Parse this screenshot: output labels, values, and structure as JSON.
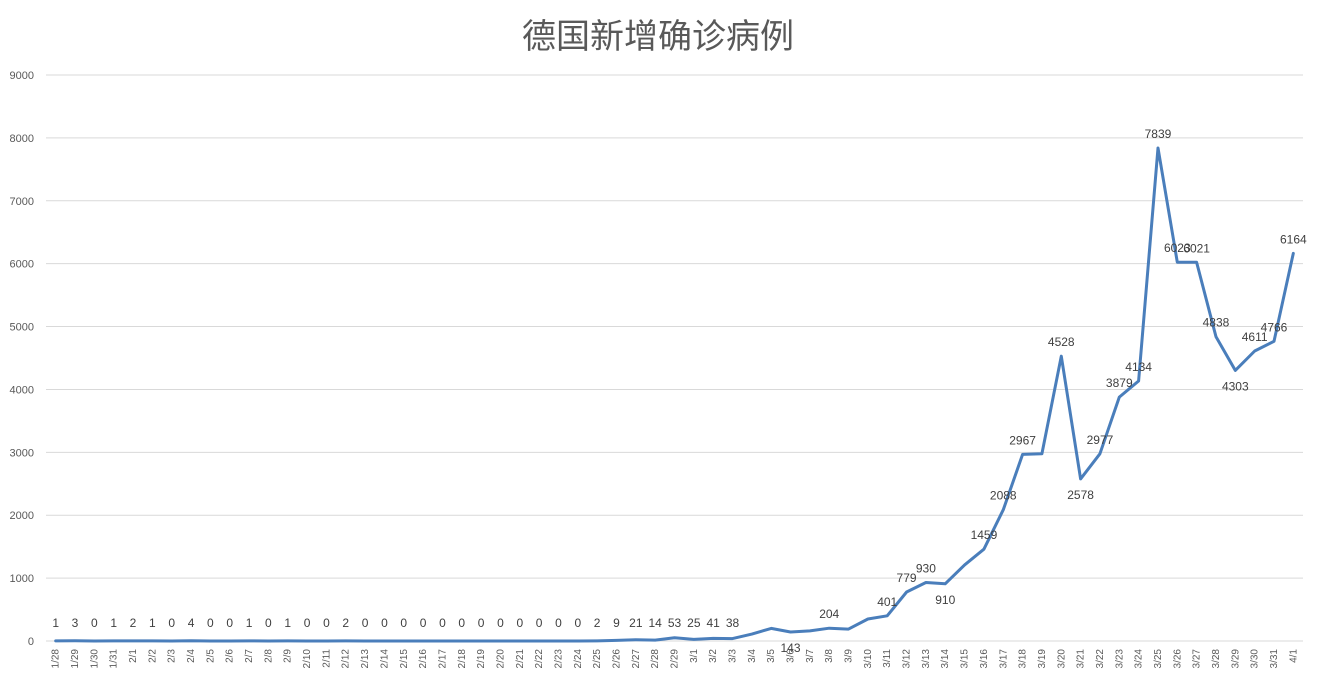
{
  "chart_data": {
    "type": "line",
    "title": "德国新增确诊病例",
    "xlabel": "",
    "ylabel": "",
    "ylim": [
      0,
      9000
    ],
    "yticks": [
      "0",
      "1000",
      "2000",
      "3000",
      "4000",
      "5000",
      "6000",
      "7000",
      "8000",
      "9000"
    ],
    "grid": true,
    "legend": "none",
    "series_color": "#4a7ebb",
    "categories": [
      "1/28",
      "1/29",
      "1/30",
      "1/31",
      "2/1",
      "2/2",
      "2/3",
      "2/4",
      "2/5",
      "2/6",
      "2/7",
      "2/8",
      "2/9",
      "2/10",
      "2/11",
      "2/12",
      "2/13",
      "2/14",
      "2/15",
      "2/16",
      "2/17",
      "2/18",
      "2/19",
      "2/20",
      "2/21",
      "2/22",
      "2/23",
      "2/24",
      "2/25",
      "2/26",
      "2/27",
      "2/28",
      "2/29",
      "3/1",
      "3/2",
      "3/3",
      "3/4",
      "3/5",
      "3/6",
      "3/7",
      "3/8",
      "3/9",
      "3/10",
      "3/11",
      "3/12",
      "3/13",
      "3/14",
      "3/15",
      "3/16",
      "3/17",
      "3/18",
      "3/19",
      "3/20",
      "3/21",
      "3/22",
      "3/23",
      "3/24",
      "3/25",
      "3/26",
      "3/27",
      "3/28",
      "3/29",
      "3/30",
      "3/31",
      "4/1"
    ],
    "values": [
      1,
      3,
      0,
      1,
      2,
      1,
      0,
      4,
      0,
      0,
      1,
      0,
      1,
      0,
      0,
      2,
      0,
      0,
      0,
      0,
      0,
      0,
      0,
      0,
      0,
      0,
      0,
      0,
      2,
      9,
      21,
      14,
      53,
      25,
      41,
      38,
      110,
      200,
      143,
      160,
      204,
      190,
      350,
      401,
      779,
      930,
      910,
      1210,
      1459,
      2088,
      2967,
      2977,
      4528,
      2578,
      2977,
      3879,
      4134,
      7839,
      6023,
      6021,
      4838,
      4303,
      4611,
      4766,
      6164
    ],
    "data_labels": [
      "1",
      "3",
      "0",
      "1",
      "2",
      "1",
      "0",
      "4",
      "0",
      "0",
      "1",
      "0",
      "1",
      "0",
      "0",
      "2",
      "0",
      "0",
      "0",
      "0",
      "0",
      "0",
      "0",
      "0",
      "0",
      "0",
      "0",
      "0",
      "2",
      "9",
      "21",
      "14",
      "53",
      "25",
      "41",
      "38",
      "",
      "",
      "143",
      "",
      "204",
      "",
      "",
      "401",
      "779",
      "930",
      "910",
      "",
      "1459",
      "2088",
      "2967",
      "",
      "4528",
      "2578",
      "2977",
      "3879",
      "4134",
      "7839",
      "6023",
      "6021",
      "4838",
      "4303",
      "4611",
      "4766",
      "6164"
    ]
  }
}
